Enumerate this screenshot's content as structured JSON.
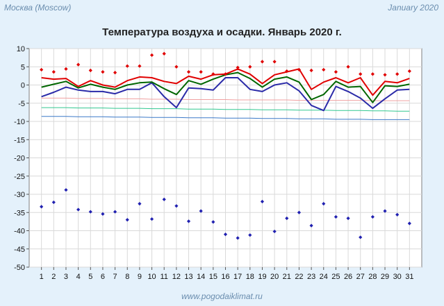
{
  "header": {
    "location": "Москва (Moscow)",
    "period": "January 2020"
  },
  "footer": {
    "site": "www.pogodaiklimat.ru"
  },
  "colors": {
    "background": "#e4f1fb",
    "plot_background": "#ffffff",
    "max_temp": "#e00000",
    "mean_temp": "#006600",
    "min_temp": "#2a2aa8",
    "norm_max": "#f0a0a0",
    "norm_mean": "#30c890",
    "norm_min": "#3a78c8",
    "record_max_marker": "#e00000",
    "record_min_marker": "#2020b0"
  },
  "chart_data": {
    "type": "line",
    "title": "Температура воздуха и осадки. Январь 2020 г.",
    "xlabel": "",
    "ylabel": "",
    "x": [
      1,
      2,
      3,
      4,
      5,
      6,
      7,
      8,
      9,
      10,
      11,
      12,
      13,
      14,
      15,
      16,
      17,
      18,
      19,
      20,
      21,
      22,
      23,
      24,
      25,
      26,
      27,
      28,
      29,
      30,
      31
    ],
    "x_ticks": [
      "1",
      "2",
      "3",
      "4",
      "5",
      "6",
      "7",
      "8",
      "9",
      "10",
      "11",
      "12",
      "13",
      "14",
      "15",
      "16",
      "17",
      "18",
      "19",
      "20",
      "21",
      "22",
      "23",
      "24",
      "25",
      "26",
      "27",
      "28",
      "29",
      "30",
      "31"
    ],
    "ylim": [
      -50,
      10
    ],
    "y_ticks": [
      "10",
      "5",
      "0",
      "-5",
      "-10",
      "-15",
      "-20",
      "-25",
      "-30",
      "-35",
      "-40",
      "-45",
      "-50"
    ],
    "grid": true,
    "series": [
      {
        "key": "max",
        "style": "line",
        "values": [
          2.0,
          1.6,
          1.8,
          -0.4,
          1.2,
          0.0,
          -0.6,
          1.2,
          2.2,
          2.0,
          1.0,
          0.4,
          2.4,
          1.6,
          2.8,
          3.0,
          4.4,
          3.0,
          0.4,
          2.8,
          3.6,
          4.4,
          -1.2,
          0.8,
          2.0,
          0.6,
          2.0,
          -2.8,
          1.0,
          0.6,
          1.8
        ]
      },
      {
        "key": "mean",
        "style": "line",
        "values": [
          -0.6,
          0.2,
          1.0,
          -0.8,
          0.2,
          -0.6,
          -1.2,
          0.0,
          0.6,
          0.8,
          -1.0,
          -2.6,
          1.2,
          0.2,
          1.6,
          2.8,
          3.4,
          1.8,
          -0.6,
          1.6,
          2.2,
          0.8,
          -4.0,
          -2.6,
          1.0,
          -0.6,
          -0.4,
          -4.8,
          -0.2,
          -0.4,
          0.2
        ]
      },
      {
        "key": "min",
        "style": "line",
        "values": [
          -3.2,
          -2.0,
          -0.6,
          -1.4,
          -1.8,
          -1.8,
          -2.4,
          -1.2,
          -1.2,
          0.6,
          -3.2,
          -6.2,
          -0.8,
          -1.0,
          -1.4,
          2.0,
          2.0,
          -1.2,
          -1.8,
          0.0,
          0.6,
          -1.6,
          -5.6,
          -7.0,
          -0.4,
          -1.8,
          -3.6,
          -6.4,
          -3.8,
          -1.4,
          -1.2
        ]
      },
      {
        "key": "norm_max",
        "style": "line",
        "values": [
          -3.6,
          -3.6,
          -3.6,
          -3.7,
          -3.7,
          -3.7,
          -3.8,
          -3.8,
          -3.8,
          -3.9,
          -3.9,
          -3.9,
          -4.0,
          -4.0,
          -4.0,
          -4.0,
          -4.1,
          -4.1,
          -4.1,
          -4.1,
          -4.1,
          -4.2,
          -4.2,
          -4.2,
          -4.2,
          -4.2,
          -4.2,
          -4.3,
          -4.3,
          -4.3,
          -4.3
        ]
      },
      {
        "key": "norm_mean",
        "style": "line",
        "values": [
          -6.2,
          -6.2,
          -6.2,
          -6.3,
          -6.3,
          -6.3,
          -6.4,
          -6.4,
          -6.4,
          -6.5,
          -6.5,
          -6.5,
          -6.6,
          -6.6,
          -6.6,
          -6.7,
          -6.7,
          -6.7,
          -6.8,
          -6.8,
          -6.8,
          -6.9,
          -6.9,
          -6.9,
          -7.0,
          -7.0,
          -7.0,
          -7.1,
          -7.1,
          -7.2,
          -7.2
        ]
      },
      {
        "key": "norm_min",
        "style": "line",
        "values": [
          -8.6,
          -8.6,
          -8.6,
          -8.7,
          -8.7,
          -8.7,
          -8.8,
          -8.8,
          -8.8,
          -8.9,
          -8.9,
          -8.9,
          -9.0,
          -9.0,
          -9.0,
          -9.1,
          -9.1,
          -9.1,
          -9.2,
          -9.2,
          -9.2,
          -9.3,
          -9.3,
          -9.3,
          -9.4,
          -9.4,
          -9.4,
          -9.5,
          -9.5,
          -9.5,
          -9.5
        ]
      },
      {
        "key": "record_max",
        "style": "markers",
        "values": [
          4.2,
          3.6,
          4.4,
          5.6,
          4.0,
          3.6,
          3.4,
          5.2,
          5.2,
          8.2,
          8.6,
          5.0,
          3.6,
          3.6,
          3.0,
          3.0,
          4.8,
          5.0,
          6.4,
          6.4,
          3.8,
          4.2,
          4.0,
          4.2,
          3.6,
          5.0,
          3.0,
          3.0,
          2.8,
          3.0,
          3.8
        ]
      },
      {
        "key": "record_min",
        "style": "markers",
        "values": [
          -33.4,
          -32.2,
          -28.8,
          -34.2,
          -34.8,
          -35.4,
          -34.8,
          -37.0,
          -32.6,
          -36.8,
          -31.4,
          -33.2,
          -37.4,
          -34.6,
          -37.6,
          -41.0,
          -42.0,
          -41.2,
          -32.0,
          -40.2,
          -36.6,
          -35.0,
          -38.6,
          -32.6,
          -36.2,
          -36.6,
          -41.8,
          -36.2,
          -34.6,
          -35.6,
          -38.0
        ]
      }
    ]
  }
}
